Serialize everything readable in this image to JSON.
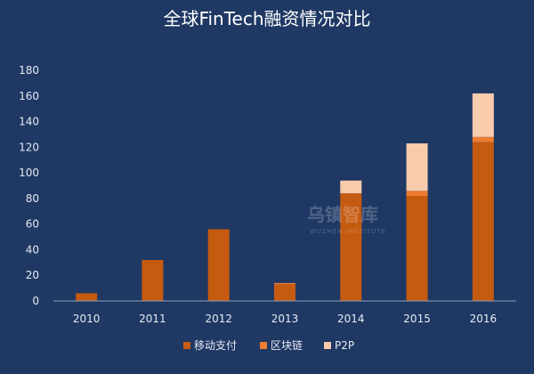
{
  "chart_data": {
    "type": "bar",
    "stacked": true,
    "title": "全球FinTech融资情况对比",
    "categories": [
      "2010",
      "2011",
      "2012",
      "2013",
      "2014",
      "2015",
      "2016"
    ],
    "series": [
      {
        "name": "移动支付",
        "color": "#c55a11",
        "values": [
          6,
          32,
          56,
          13,
          84,
          82,
          124
        ]
      },
      {
        "name": "区块链",
        "color": "#ed7d31",
        "values": [
          0,
          0,
          0,
          1,
          0,
          4,
          4
        ]
      },
      {
        "name": "P2P",
        "color": "#f8cbad",
        "values": [
          0,
          0,
          0,
          0,
          10,
          37,
          34
        ]
      }
    ],
    "yticks": [
      0,
      20,
      40,
      60,
      80,
      100,
      120,
      140,
      160,
      180
    ],
    "ylim": [
      0,
      180
    ],
    "grid": false,
    "legend_position": "bottom"
  },
  "watermark": {
    "text": "乌镇智库",
    "subtext": "WUZHEN INSTITUTE"
  }
}
